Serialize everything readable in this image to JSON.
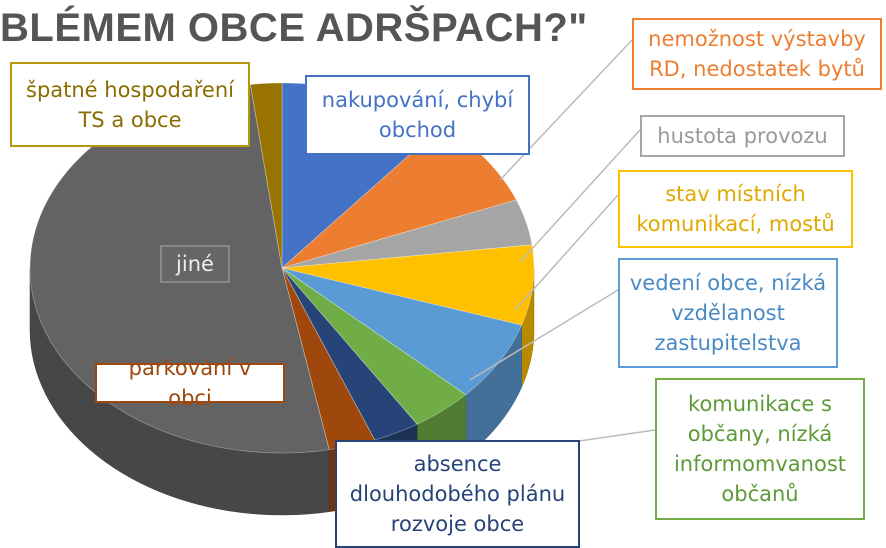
{
  "chart_data": {
    "type": "pie",
    "title": "BLÉMEM OBCE ADRŠPACH?\"",
    "categories": [
      "nakupování, chybí obchod",
      "nemožnost výstavby RD, nedostatek bytů",
      "hustota provozu",
      "stav místních komunikací, mostů",
      "vedení obce, nízká vzdělanost zastupitelstva",
      "komunikace s občany, nízká informomvanost občanů",
      "absence dlouhodobého plánu rozvoje obce",
      "parkování v obci",
      "jiné",
      "špatné hospodaření TS a obce"
    ],
    "values": [
      11,
      8,
      4,
      7,
      7,
      4,
      3,
      3,
      51,
      2
    ],
    "colors": [
      "#4472c4",
      "#ed7d31",
      "#a5a5a5",
      "#ffc000",
      "#5b9bd5",
      "#70ad47",
      "#264478",
      "#9e480e",
      "#636363",
      "#997300"
    ]
  }
}
